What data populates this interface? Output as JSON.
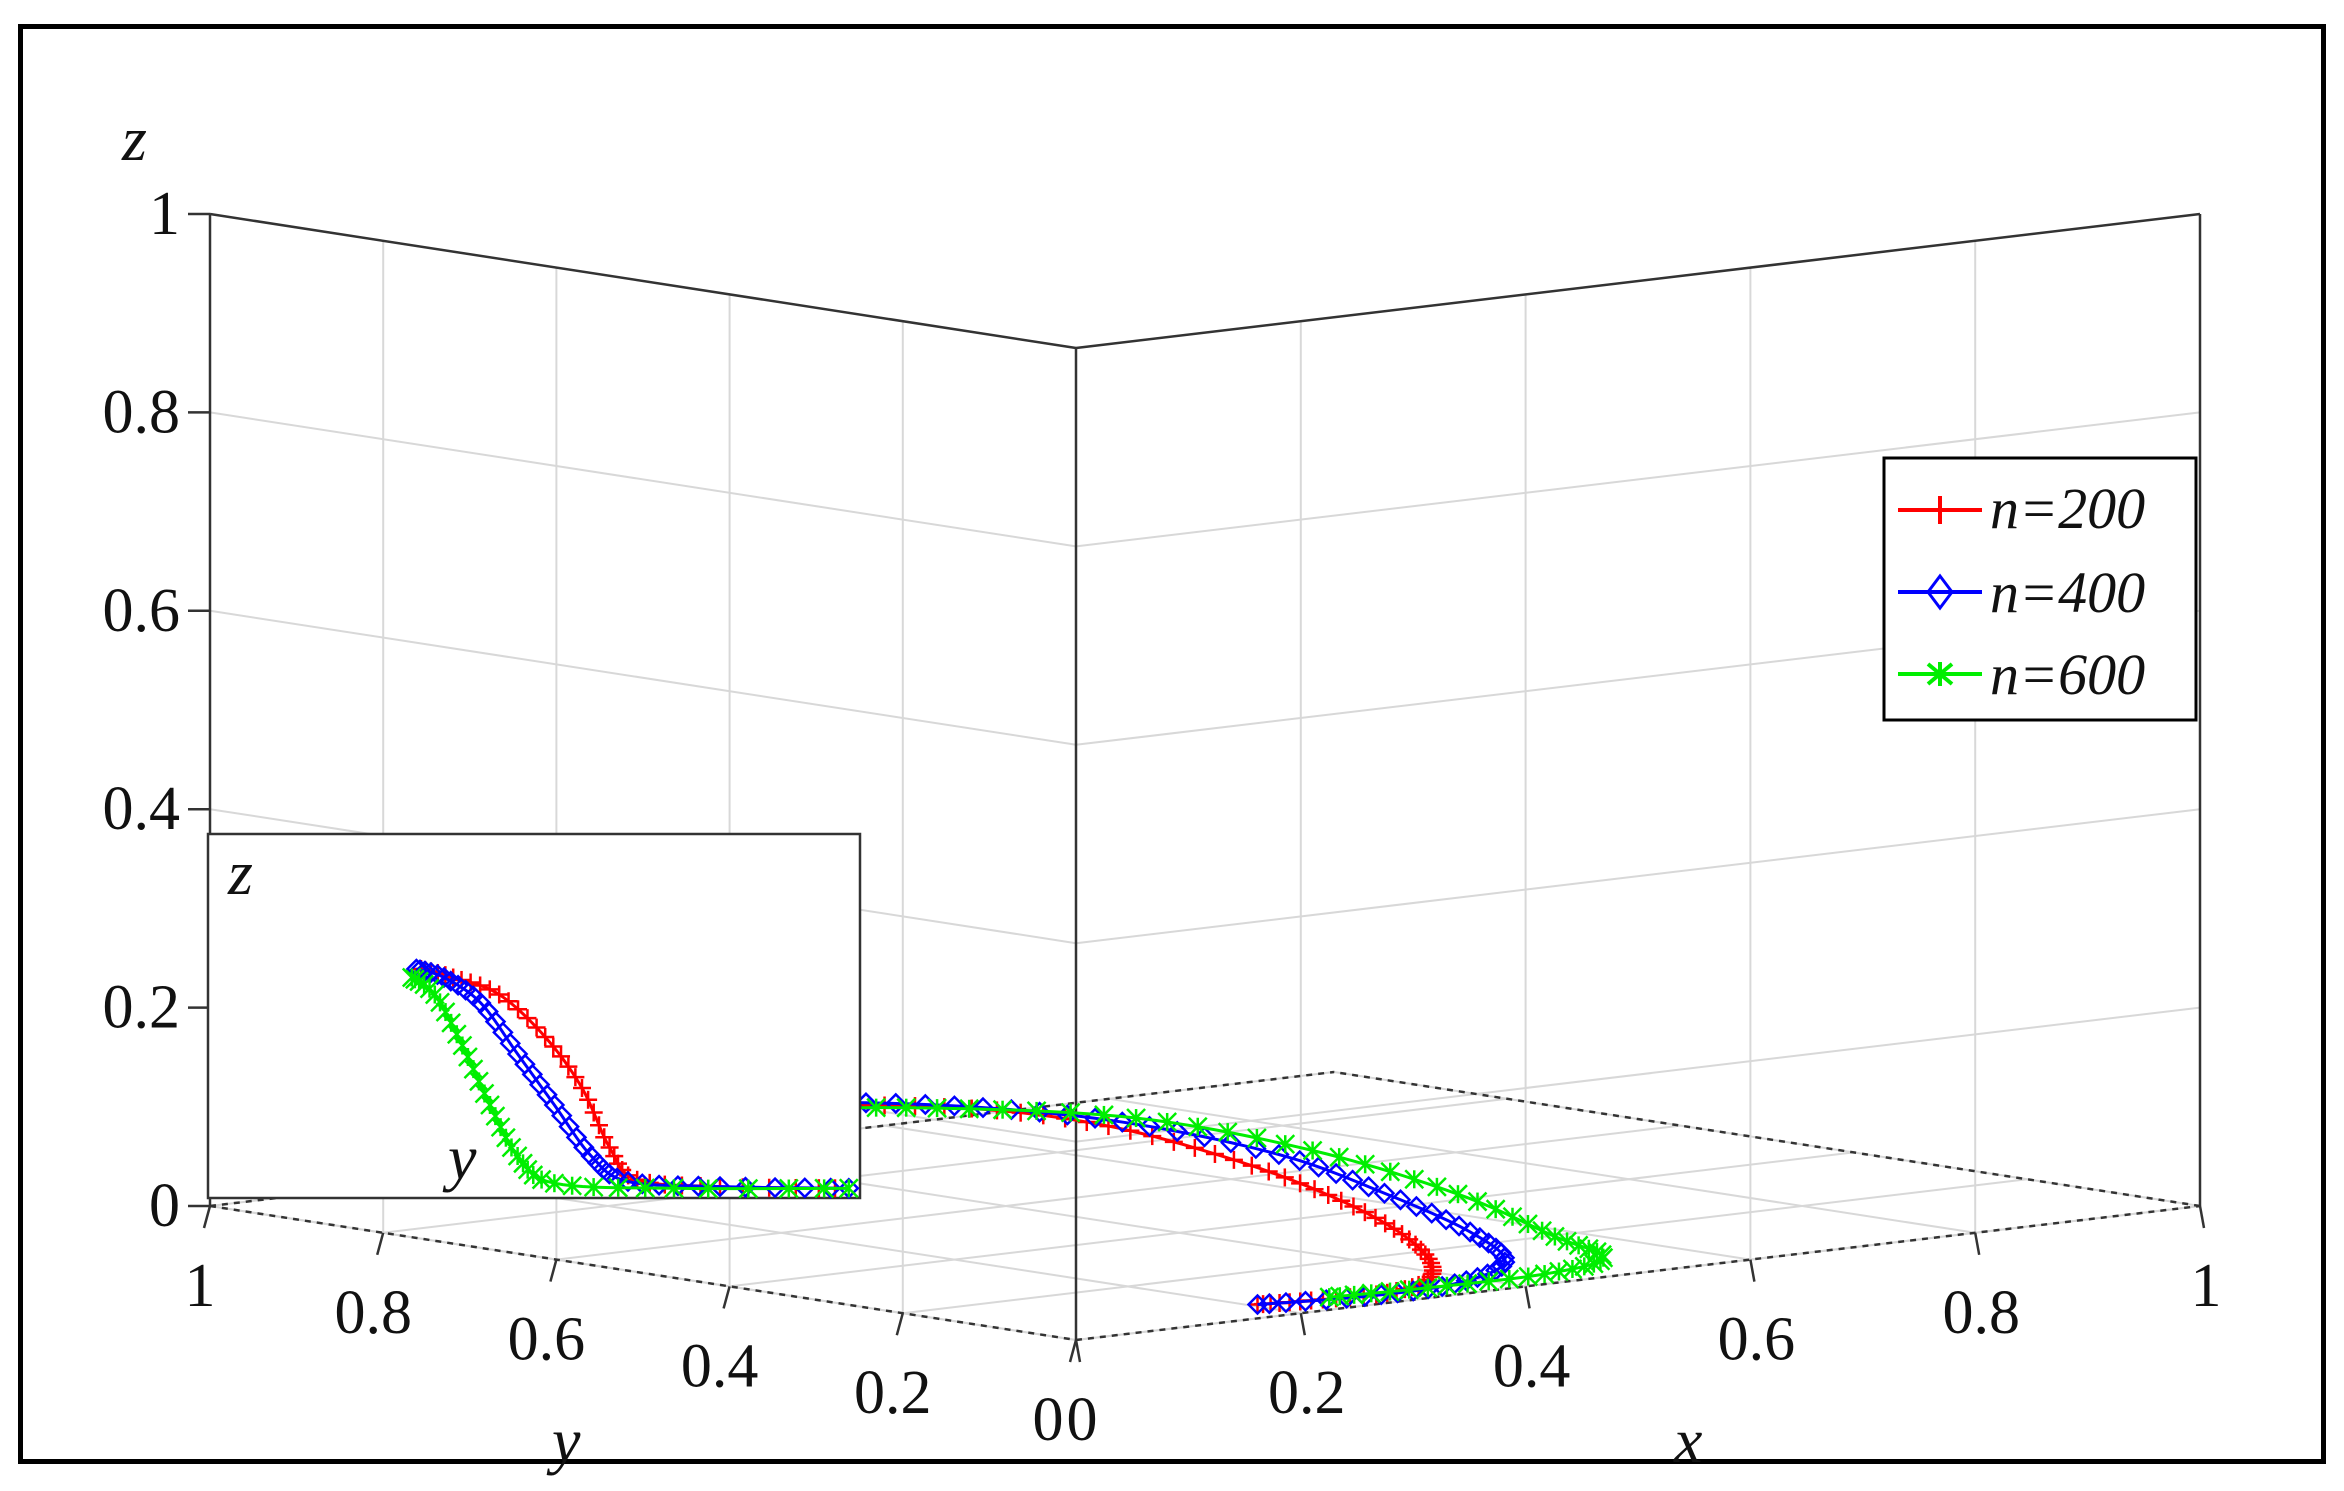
{
  "chart_data": {
    "type": "line3d",
    "title": "",
    "axes": {
      "x": {
        "label": "x",
        "range": [
          0,
          1
        ],
        "ticks": [
          "0",
          "0.2",
          "0.4",
          "0.6",
          "0.8",
          "1"
        ]
      },
      "y": {
        "label": "y",
        "range": [
          0,
          1
        ],
        "ticks": [
          "0",
          "0.2",
          "0.4",
          "0.6",
          "0.8",
          "1"
        ]
      },
      "z": {
        "label": "z",
        "range": [
          0,
          1
        ],
        "ticks": [
          "0",
          "0.2",
          "0.4",
          "0.6",
          "0.8",
          "1"
        ]
      }
    },
    "grid": true,
    "legend": {
      "placement": "right",
      "entries": [
        "n=200",
        "n=400",
        "n=600"
      ]
    },
    "series": [
      {
        "name": "n=200",
        "color": "#ff0000",
        "marker": "plus",
        "main": [
          [
            0.06,
            0.58,
            0.14
          ],
          [
            0.12,
            0.48,
            0.155
          ],
          [
            0.2,
            0.38,
            0.155
          ],
          [
            0.26,
            0.3,
            0.14
          ],
          [
            0.31,
            0.22,
            0.11
          ],
          [
            0.34,
            0.15,
            0.08
          ],
          [
            0.36,
            0.1,
            0.05
          ],
          [
            0.36,
            0.06,
            0.025
          ],
          [
            0.34,
            0.035,
            0.01
          ],
          [
            0.3,
            0.03,
            0.003
          ],
          [
            0.24,
            0.04,
            0.002
          ],
          [
            0.2,
            0.05,
            0.002
          ]
        ],
        "inset": [
          [
            0.05,
            0.13
          ],
          [
            0.12,
            0.125
          ],
          [
            0.22,
            0.115
          ],
          [
            0.32,
            0.09
          ],
          [
            0.4,
            0.06
          ],
          [
            0.46,
            0.025
          ],
          [
            0.52,
            0.006
          ],
          [
            0.7,
            0.002
          ],
          [
            0.95,
            0.001
          ]
        ]
      },
      {
        "name": "n=400",
        "color": "#0000ff",
        "marker": "diamond",
        "main": [
          [
            0.05,
            0.6,
            0.14
          ],
          [
            0.12,
            0.5,
            0.155
          ],
          [
            0.2,
            0.4,
            0.155
          ],
          [
            0.28,
            0.31,
            0.14
          ],
          [
            0.35,
            0.22,
            0.11
          ],
          [
            0.39,
            0.15,
            0.075
          ],
          [
            0.42,
            0.09,
            0.04
          ],
          [
            0.42,
            0.05,
            0.015
          ],
          [
            0.36,
            0.03,
            0.004
          ],
          [
            0.28,
            0.03,
            0.002
          ],
          [
            0.2,
            0.05,
            0.002
          ]
        ],
        "inset": [
          [
            0.04,
            0.13
          ],
          [
            0.1,
            0.125
          ],
          [
            0.18,
            0.11
          ],
          [
            0.26,
            0.08
          ],
          [
            0.34,
            0.05
          ],
          [
            0.42,
            0.02
          ],
          [
            0.5,
            0.005
          ],
          [
            0.7,
            0.002
          ],
          [
            0.98,
            0.001
          ]
        ]
      },
      {
        "name": "n=600",
        "color": "#00ee00",
        "marker": "star",
        "main": [
          [
            0.05,
            0.62,
            0.13
          ],
          [
            0.12,
            0.52,
            0.145
          ],
          [
            0.2,
            0.42,
            0.15
          ],
          [
            0.3,
            0.32,
            0.14
          ],
          [
            0.38,
            0.22,
            0.11
          ],
          [
            0.44,
            0.13,
            0.07
          ],
          [
            0.48,
            0.07,
            0.03
          ],
          [
            0.5,
            0.04,
            0.01
          ],
          [
            0.44,
            0.03,
            0.003
          ],
          [
            0.34,
            0.035,
            0.002
          ],
          [
            0.26,
            0.045,
            0.002
          ]
        ],
        "inset": [
          [
            0.03,
            0.125
          ],
          [
            0.08,
            0.115
          ],
          [
            0.14,
            0.085
          ],
          [
            0.2,
            0.05
          ],
          [
            0.26,
            0.02
          ],
          [
            0.34,
            0.004
          ],
          [
            0.6,
            0.001
          ],
          [
            0.98,
            0.001
          ]
        ]
      }
    ],
    "inset": {
      "xlabel": "y",
      "ylabel": "z"
    }
  }
}
